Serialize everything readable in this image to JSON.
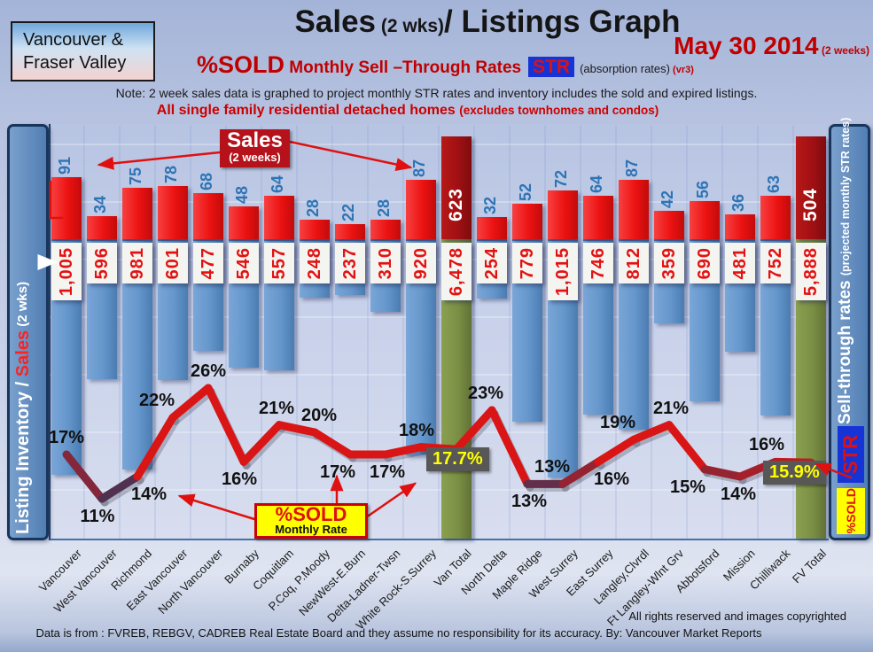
{
  "header": {
    "region_line1": "Vancouver &",
    "region_line2": "Fraser Valley",
    "title_part1": "Sales",
    "title_small": " (2 wks)",
    "title_part2": "/ Listings Graph",
    "date": "May 30 2014",
    "date_suffix": " (2 weeks)",
    "subtitle_pct": "%SOLD",
    "subtitle_rest": " Monthly Sell –Through Rates",
    "str_badge": "STR",
    "absorption": "(absorption rates)",
    "version": " (vr3)",
    "note": "Note: 2 week sales data is graphed to project monthly STR rates and inventory includes the sold and expired listings.",
    "subnote": "All single family residential detached homes ",
    "subnote_paren": "(excludes townhomes and condos)"
  },
  "axes": {
    "left_label_prefix": "Listing Inventory / ",
    "left_label_sales": "Sales",
    "left_label_suffix": " (2  wks)",
    "right_label": "Sell-through rates  ",
    "right_label_paren": "(projected monthly STR rates)",
    "right_str_badge": "STR",
    "right_sold_badge": "%SOLD"
  },
  "callouts": {
    "sales_line1": "Sales",
    "sales_line2": "(2 weeks)",
    "sold_line1": "%SOLD",
    "sold_line2": "Monthly Rate"
  },
  "footer": {
    "rights": "All rights reserved and  images copyrighted",
    "source": "Data is from : FVREB, REBGV, CADREB Real Estate Board and they assume no responsibility for its accuracy. By: Vancouver Market Reports"
  },
  "colors": {
    "sales_bar": "#ec1212",
    "total_sales_bar": "#a01013",
    "inventory_bar": "#6596cb",
    "total_inventory_bar": "#7b8f44",
    "line_high": "#d91515",
    "line_low": "#1e3c66",
    "pct_box_bg": "#575757",
    "pct_box_text": "#ffff00",
    "accent_red": "#c00000",
    "panel_blue": "#517eb4"
  },
  "chart_data": {
    "type": "bar+line",
    "title": "Sales (2 wks)/ Listings Graph",
    "categories": [
      "Vancouver",
      "West Vancouver",
      "Richmond",
      "East Vancouver",
      "North Vancouver",
      "Burnaby",
      "Coquitlam",
      "P.Coq, P.Moody",
      "NewWest-E.Burn",
      "Delta-Ladner-Twsn",
      "White Rock-S.Surrey",
      "Van Total",
      "North Delta",
      "Maple Ridge",
      "West Surrey",
      "East Surrey",
      "Langley,Clvrdl",
      "Ft Langley-Wlnt Grv",
      "Abbotsford",
      "Mission",
      "Chilliwack",
      "FV Total"
    ],
    "series": [
      {
        "name": "Sales (2 weeks)",
        "type": "bar",
        "values": [
          91,
          34,
          75,
          78,
          68,
          48,
          64,
          28,
          22,
          28,
          87,
          623,
          32,
          52,
          72,
          64,
          87,
          42,
          56,
          36,
          63,
          504
        ]
      },
      {
        "name": "Listing Inventory",
        "type": "bar",
        "values": [
          1005,
          596,
          981,
          601,
          477,
          546,
          557,
          248,
          237,
          310,
          920,
          6478,
          254,
          779,
          1015,
          746,
          812,
          359,
          690,
          481,
          752,
          5888
        ],
        "labels": [
          "1,005",
          "596",
          "981",
          "601",
          "477",
          "546",
          "557",
          "248",
          "237",
          "310",
          "920",
          "6,478",
          "254",
          "779",
          "1,015",
          "746",
          "812",
          "359",
          "690",
          "481",
          "752",
          "5,888"
        ]
      },
      {
        "name": "%SOLD Monthly Sell-Through Rate (projected monthly STR)",
        "type": "line",
        "values": [
          17,
          11,
          14,
          22,
          26,
          16,
          21,
          20,
          17,
          17,
          18,
          17.7,
          23,
          13,
          13,
          16,
          19,
          21,
          15,
          14,
          16,
          15.9
        ],
        "labels": [
          "17%",
          "11%",
          "14%",
          "22%",
          "26%",
          "16%",
          "21%",
          "20%",
          "17%",
          "17%",
          "18%",
          "17.7%",
          "23%",
          "13%",
          "13%",
          "16%",
          "19%",
          "21%",
          "15%",
          "14%",
          "16%",
          "15.9%"
        ]
      }
    ],
    "total_indices": [
      11,
      21
    ],
    "label_sides": [
      "above",
      "below",
      "below",
      "above",
      "above",
      "below",
      "above",
      "above",
      "below",
      "below",
      "above",
      "box",
      "above",
      "below",
      "above",
      "below",
      "above",
      "above",
      "below",
      "below",
      "above",
      "box"
    ],
    "label_dx": [
      0,
      -5,
      13,
      -18,
      0,
      -5,
      -3,
      5,
      -14,
      2,
      -5,
      2,
      -7,
      2,
      -12,
      15,
      -18,
      2,
      -19,
      -2,
      -10,
      -18
    ],
    "legend_position": "none",
    "grid": true
  }
}
